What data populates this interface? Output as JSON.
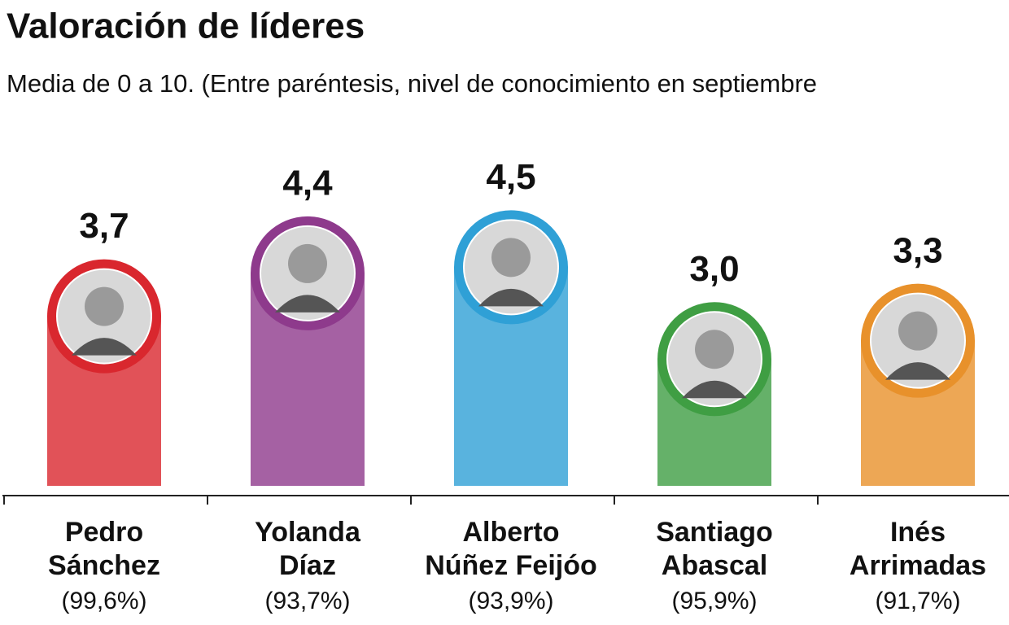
{
  "chart_data": {
    "type": "bar",
    "title": "Valoración de líderes",
    "subtitle": "Media de 0 a 10. (Entre paréntesis, nivel de conocimiento en septiembre",
    "categories": [
      [
        "Pedro",
        "Sánchez"
      ],
      [
        "Yolanda",
        "Díaz"
      ],
      [
        "Alberto",
        "Núñez Feijóo"
      ],
      [
        "Santiago",
        "Abascal"
      ],
      [
        "Inés",
        "Arrimadas"
      ]
    ],
    "category_notes": [
      "(99,6%)",
      "(93,7%)",
      "(93,9%)",
      "(95,9%)",
      "(91,7%)"
    ],
    "values": [
      3.7,
      4.4,
      4.5,
      3.0,
      3.3
    ],
    "value_labels": [
      "3,7",
      "4,4",
      "4,5",
      "3,0",
      "3,3"
    ],
    "colors": [
      "#d9272e",
      "#8e3a8c",
      "#2fa0d6",
      "#3f9e43",
      "#e8912b"
    ],
    "ylim": [
      0,
      8
    ]
  }
}
